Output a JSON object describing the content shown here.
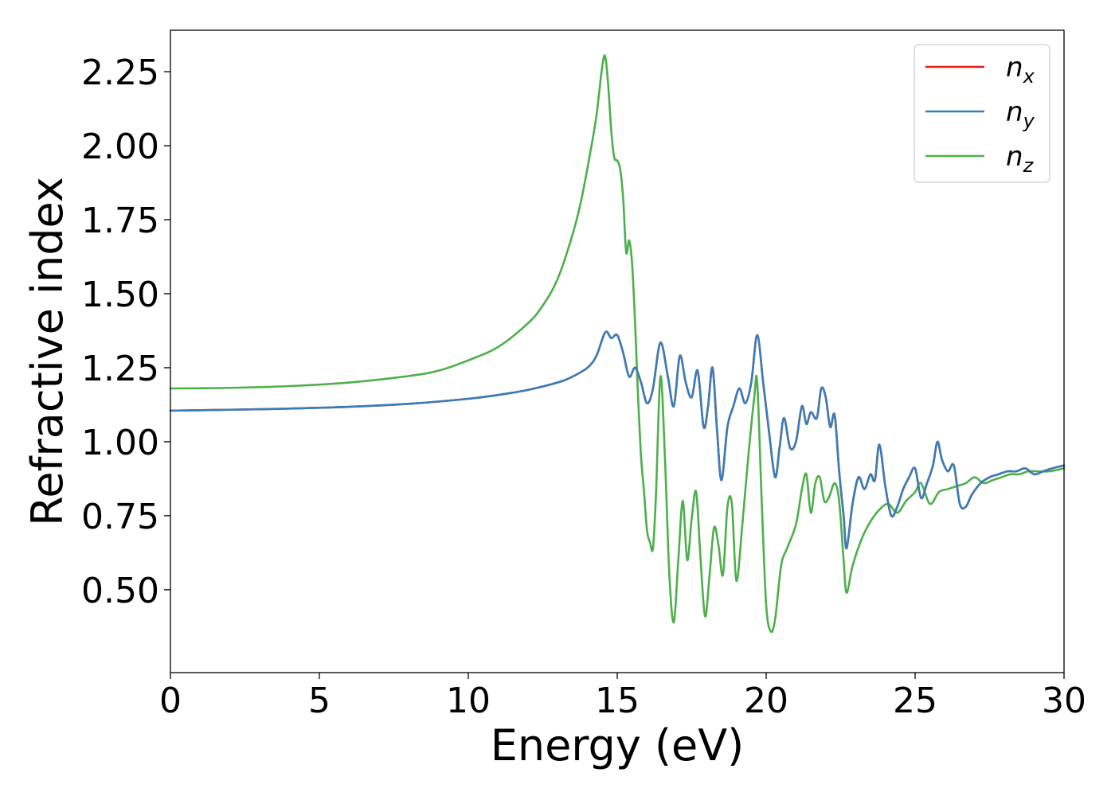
{
  "chart_data": {
    "type": "line",
    "title": "",
    "xlabel": "Energy (eV)",
    "ylabel": "Refractive index",
    "xlim": [
      0,
      30
    ],
    "ylim": [
      0.22,
      2.39
    ],
    "xticks": [
      0,
      5,
      10,
      15,
      20,
      25,
      30
    ],
    "xtick_labels": [
      "0",
      "5",
      "10",
      "15",
      "20",
      "25",
      "30"
    ],
    "yticks": [
      0.5,
      0.75,
      1.0,
      1.25,
      1.5,
      1.75,
      2.0,
      2.25
    ],
    "ytick_labels": [
      "0.50",
      "0.75",
      "1.00",
      "1.25",
      "1.50",
      "1.75",
      "2.00",
      "2.25"
    ],
    "grid": false,
    "legend_position": "top-right",
    "series": [
      {
        "name": "n",
        "subscript": "x",
        "color": "#e41a1c",
        "x": [
          0,
          2,
          4,
          6,
          8,
          10,
          11,
          12,
          13,
          13.5,
          14,
          14.3,
          14.6,
          14.8,
          15.0,
          15.2,
          15.4,
          15.6,
          15.8,
          16.0,
          16.2,
          16.45,
          16.7,
          16.9,
          17.1,
          17.3,
          17.5,
          17.7,
          17.9,
          18.05,
          18.2,
          18.35,
          18.5,
          18.7,
          18.9,
          19.1,
          19.3,
          19.5,
          19.7,
          19.9,
          20.1,
          20.3,
          20.45,
          20.6,
          20.8,
          21.0,
          21.2,
          21.35,
          21.5,
          21.7,
          21.85,
          22.0,
          22.15,
          22.3,
          22.45,
          22.6,
          22.7,
          22.9,
          23.1,
          23.3,
          23.5,
          23.65,
          23.8,
          24.0,
          24.2,
          24.4,
          24.6,
          24.8,
          25.0,
          25.2,
          25.4,
          25.6,
          25.75,
          25.9,
          26.1,
          26.3,
          26.5,
          26.7,
          26.9,
          27.2,
          27.5,
          27.8,
          28.1,
          28.4,
          28.7,
          29.0,
          29.3,
          29.6,
          30.0
        ],
        "values": [
          1.105,
          1.108,
          1.112,
          1.118,
          1.128,
          1.145,
          1.158,
          1.175,
          1.2,
          1.22,
          1.25,
          1.29,
          1.37,
          1.35,
          1.36,
          1.3,
          1.22,
          1.25,
          1.2,
          1.13,
          1.18,
          1.335,
          1.22,
          1.12,
          1.29,
          1.2,
          1.15,
          1.24,
          1.05,
          1.12,
          1.25,
          1.04,
          0.87,
          1.05,
          1.12,
          1.18,
          1.13,
          1.2,
          1.36,
          1.2,
          1.03,
          0.88,
          0.98,
          1.08,
          0.98,
          1.0,
          1.12,
          1.06,
          1.1,
          1.08,
          1.18,
          1.15,
          1.05,
          1.09,
          0.9,
          0.75,
          0.64,
          0.79,
          0.88,
          0.84,
          0.89,
          0.87,
          0.99,
          0.85,
          0.75,
          0.78,
          0.84,
          0.88,
          0.91,
          0.81,
          0.86,
          0.92,
          1.0,
          0.94,
          0.9,
          0.92,
          0.79,
          0.78,
          0.82,
          0.86,
          0.88,
          0.89,
          0.9,
          0.9,
          0.91,
          0.89,
          0.9,
          0.91,
          0.92
        ]
      },
      {
        "name": "n",
        "subscript": "y",
        "color": "#377eb8",
        "x": [
          0,
          2,
          4,
          6,
          8,
          10,
          11,
          12,
          13,
          13.5,
          14,
          14.3,
          14.6,
          14.8,
          15.0,
          15.2,
          15.4,
          15.6,
          15.8,
          16.0,
          16.2,
          16.45,
          16.7,
          16.9,
          17.1,
          17.3,
          17.5,
          17.7,
          17.9,
          18.05,
          18.2,
          18.35,
          18.5,
          18.7,
          18.9,
          19.1,
          19.3,
          19.5,
          19.7,
          19.9,
          20.1,
          20.3,
          20.45,
          20.6,
          20.8,
          21.0,
          21.2,
          21.35,
          21.5,
          21.7,
          21.85,
          22.0,
          22.15,
          22.3,
          22.45,
          22.6,
          22.7,
          22.9,
          23.1,
          23.3,
          23.5,
          23.65,
          23.8,
          24.0,
          24.2,
          24.4,
          24.6,
          24.8,
          25.0,
          25.2,
          25.4,
          25.6,
          25.75,
          25.9,
          26.1,
          26.3,
          26.5,
          26.7,
          26.9,
          27.2,
          27.5,
          27.8,
          28.1,
          28.4,
          28.7,
          29.0,
          29.3,
          29.6,
          30.0
        ],
        "values": [
          1.105,
          1.108,
          1.112,
          1.118,
          1.128,
          1.145,
          1.158,
          1.175,
          1.2,
          1.22,
          1.25,
          1.29,
          1.37,
          1.35,
          1.36,
          1.3,
          1.22,
          1.25,
          1.2,
          1.13,
          1.18,
          1.335,
          1.22,
          1.12,
          1.29,
          1.2,
          1.15,
          1.24,
          1.05,
          1.12,
          1.25,
          1.04,
          0.87,
          1.05,
          1.12,
          1.18,
          1.13,
          1.2,
          1.36,
          1.2,
          1.03,
          0.88,
          0.98,
          1.08,
          0.98,
          1.0,
          1.12,
          1.06,
          1.1,
          1.08,
          1.18,
          1.15,
          1.05,
          1.09,
          0.9,
          0.75,
          0.64,
          0.79,
          0.88,
          0.84,
          0.89,
          0.87,
          0.99,
          0.85,
          0.75,
          0.78,
          0.84,
          0.88,
          0.91,
          0.81,
          0.86,
          0.92,
          1.0,
          0.94,
          0.9,
          0.92,
          0.79,
          0.78,
          0.82,
          0.86,
          0.88,
          0.89,
          0.9,
          0.9,
          0.91,
          0.89,
          0.9,
          0.91,
          0.92
        ]
      },
      {
        "name": "n",
        "subscript": "z",
        "color": "#4daf4a",
        "x": [
          0,
          2,
          4,
          6,
          8,
          9,
          10,
          11,
          12,
          12.5,
          13,
          13.5,
          13.8,
          14.1,
          14.3,
          14.5,
          14.6,
          14.7,
          14.8,
          14.9,
          15.0,
          15.1,
          15.2,
          15.3,
          15.4,
          15.5,
          15.6,
          15.7,
          15.8,
          15.9,
          16.0,
          16.1,
          16.2,
          16.3,
          16.45,
          16.6,
          16.75,
          16.9,
          17.05,
          17.2,
          17.35,
          17.5,
          17.65,
          17.8,
          17.95,
          18.1,
          18.25,
          18.4,
          18.55,
          18.7,
          18.85,
          19.0,
          19.2,
          19.4,
          19.6,
          19.7,
          19.85,
          20.0,
          20.15,
          20.3,
          20.5,
          20.7,
          21.0,
          21.2,
          21.35,
          21.5,
          21.65,
          21.8,
          21.95,
          22.1,
          22.3,
          22.45,
          22.6,
          22.7,
          22.9,
          23.2,
          23.5,
          23.8,
          24.1,
          24.4,
          24.7,
          25.0,
          25.2,
          25.5,
          25.8,
          26.1,
          26.4,
          26.7,
          27.0,
          27.3,
          27.6,
          27.9,
          28.2,
          28.5,
          28.8,
          29.1,
          29.5,
          30.0
        ],
        "values": [
          1.18,
          1.182,
          1.188,
          1.2,
          1.222,
          1.24,
          1.275,
          1.32,
          1.4,
          1.46,
          1.55,
          1.7,
          1.82,
          1.98,
          2.1,
          2.27,
          2.3,
          2.2,
          2.05,
          1.96,
          1.95,
          1.92,
          1.82,
          1.64,
          1.68,
          1.6,
          1.4,
          1.15,
          0.95,
          0.83,
          0.7,
          0.66,
          0.64,
          0.82,
          1.22,
          0.95,
          0.55,
          0.39,
          0.6,
          0.8,
          0.6,
          0.74,
          0.83,
          0.6,
          0.41,
          0.55,
          0.71,
          0.65,
          0.55,
          0.78,
          0.79,
          0.53,
          0.72,
          0.95,
          1.15,
          1.2,
          0.8,
          0.45,
          0.36,
          0.4,
          0.58,
          0.64,
          0.72,
          0.84,
          0.89,
          0.76,
          0.86,
          0.88,
          0.8,
          0.81,
          0.86,
          0.8,
          0.6,
          0.49,
          0.58,
          0.67,
          0.73,
          0.77,
          0.79,
          0.76,
          0.8,
          0.83,
          0.86,
          0.79,
          0.83,
          0.84,
          0.85,
          0.86,
          0.88,
          0.86,
          0.87,
          0.88,
          0.89,
          0.89,
          0.9,
          0.9,
          0.9,
          0.91
        ]
      }
    ]
  }
}
